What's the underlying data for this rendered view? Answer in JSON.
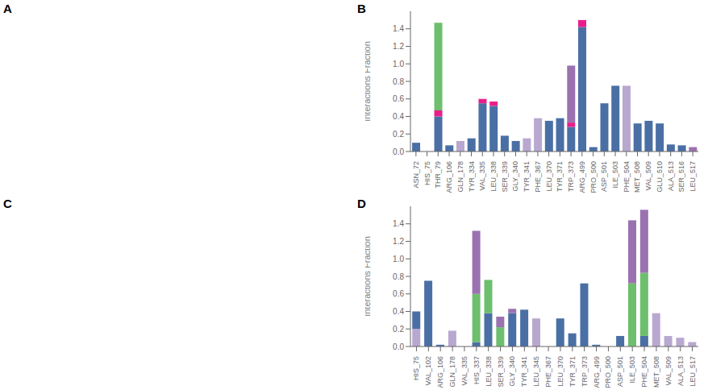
{
  "chart_data": [
    {
      "title": "A"
    },
    {
      "type": "bar",
      "title": "B",
      "stacked": true,
      "grid": false,
      "ylabel": "Interactions Fraction",
      "ylim": [
        0,
        1.6
      ],
      "yticks": [
        {
          "value": 0.0,
          "label": "0.0"
        },
        0.2,
        0.4,
        0.6,
        0.8,
        {
          "value": 1.0,
          "label": "1.0"
        },
        1.2,
        1.4
      ],
      "categories": [
        "ASN_72",
        "HIS_75",
        "THR_79",
        "ARG_106",
        "GLN_178",
        "TYR_334",
        "VAL_335",
        "LEU_338",
        "SER_339",
        "GLY_340",
        "TYR_341",
        "PHE_367",
        "LEU_370",
        "TYR_371",
        "TRP_373",
        "ARG_499",
        "PRO_500",
        "ASP_501",
        "ILE_503",
        "PHE_504",
        "MET_508",
        "VAL_509",
        "GLU_510",
        "ALA_513",
        "SER_516",
        "LEU_517"
      ],
      "series": [
        {
          "color": "#b8a8d0",
          "values": [
            0.0,
            0.0,
            0.0,
            0.0,
            0.12,
            0.0,
            0.0,
            0.0,
            0.0,
            0.0,
            0.15,
            0.38,
            0.0,
            0.0,
            0.0,
            0.0,
            0.0,
            0.0,
            0.0,
            0.75,
            0.0,
            0.0,
            0.0,
            0.0,
            0.0,
            0.0
          ]
        },
        {
          "color": "#4a6fa5",
          "values": [
            0.1,
            0.0,
            0.4,
            0.07,
            0.0,
            0.15,
            0.55,
            0.52,
            0.18,
            0.12,
            0.0,
            0.0,
            0.35,
            0.38,
            0.28,
            1.42,
            0.05,
            0.55,
            0.75,
            0.0,
            0.32,
            0.35,
            0.32,
            0.08,
            0.07,
            0.0
          ]
        },
        {
          "color": "#e91e8c",
          "values": [
            0.0,
            0.0,
            0.07,
            0.0,
            0.0,
            0.0,
            0.05,
            0.05,
            0.0,
            0.0,
            0.0,
            0.0,
            0.0,
            0.0,
            0.05,
            0.08,
            0.0,
            0.0,
            0.0,
            0.0,
            0.0,
            0.0,
            0.0,
            0.0,
            0.0,
            0.0
          ]
        },
        {
          "color": "#6dbf6d",
          "values": [
            0.0,
            0.0,
            1.0,
            0.0,
            0.0,
            0.0,
            0.0,
            0.0,
            0.0,
            0.0,
            0.0,
            0.0,
            0.0,
            0.0,
            0.0,
            0.0,
            0.0,
            0.0,
            0.0,
            0.0,
            0.0,
            0.0,
            0.0,
            0.0,
            0.0,
            0.0
          ]
        },
        {
          "color": "#9b72b0",
          "values": [
            0.0,
            0.0,
            0.0,
            0.0,
            0.0,
            0.0,
            0.0,
            0.0,
            0.0,
            0.0,
            0.0,
            0.0,
            0.0,
            0.0,
            0.65,
            0.0,
            0.0,
            0.0,
            0.0,
            0.0,
            0.0,
            0.0,
            0.0,
            0.0,
            0.0,
            0.05
          ]
        }
      ]
    },
    {
      "title": "C"
    },
    {
      "type": "bar",
      "title": "D",
      "stacked": true,
      "grid": false,
      "ylabel": "Interactions Fraction",
      "ylim": [
        0,
        1.6
      ],
      "yticks": [
        {
          "value": 0.0,
          "label": "0.0"
        },
        0.2,
        0.4,
        0.6,
        0.8,
        {
          "value": 1.0,
          "label": "1.0"
        },
        1.2,
        1.4
      ],
      "categories": [
        "HIS_75",
        "VAL_102",
        "ARG_106",
        "GLN_178",
        "VAL_335",
        "HIS_337",
        "LEU_338",
        "SER_339",
        "GLY_340",
        "TYR_341",
        "LEU_345",
        "PHE_367",
        "LEU_370",
        "TYR_371",
        "TRP_373",
        "ARG_499",
        "PRO_500",
        "ASP_501",
        "ILE_503",
        "PHE_504",
        "MET_508",
        "VAL_509",
        "ALA_513",
        "LEU_517"
      ],
      "series": [
        {
          "color": "#b8a8d0",
          "values": [
            0.2,
            0.0,
            0.0,
            0.18,
            0.0,
            0.0,
            0.0,
            0.0,
            0.0,
            0.0,
            0.32,
            0.0,
            0.0,
            0.0,
            0.0,
            0.0,
            0.0,
            0.0,
            0.0,
            0.0,
            0.38,
            0.12,
            0.1,
            0.05
          ]
        },
        {
          "color": "#4a6fa5",
          "values": [
            0.2,
            0.75,
            0.02,
            0.0,
            0.0,
            0.05,
            0.38,
            0.0,
            0.38,
            0.42,
            0.0,
            0.0,
            0.32,
            0.15,
            0.72,
            0.02,
            0.0,
            0.12,
            0.0,
            0.12,
            0.0,
            0.0,
            0.0,
            0.0
          ]
        },
        {
          "color": "#e91e8c",
          "values": [
            0.0,
            0.0,
            0.0,
            0.0,
            0.0,
            0.0,
            0.0,
            0.0,
            0.0,
            0.0,
            0.0,
            0.0,
            0.0,
            0.0,
            0.0,
            0.0,
            0.0,
            0.0,
            0.0,
            0.0,
            0.0,
            0.0,
            0.0,
            0.0
          ]
        },
        {
          "color": "#6dbf6d",
          "values": [
            0.0,
            0.0,
            0.0,
            0.0,
            0.0,
            0.55,
            0.38,
            0.22,
            0.0,
            0.0,
            0.0,
            0.0,
            0.0,
            0.0,
            0.0,
            0.0,
            0.0,
            0.0,
            0.72,
            0.72,
            0.0,
            0.0,
            0.0,
            0.0
          ]
        },
        {
          "color": "#9b72b0",
          "values": [
            0.0,
            0.0,
            0.0,
            0.0,
            0.0,
            0.72,
            0.0,
            0.12,
            0.05,
            0.0,
            0.0,
            0.0,
            0.0,
            0.0,
            0.0,
            0.0,
            0.0,
            0.0,
            0.72,
            0.72,
            0.0,
            0.0,
            0.0,
            0.0
          ]
        }
      ]
    }
  ]
}
